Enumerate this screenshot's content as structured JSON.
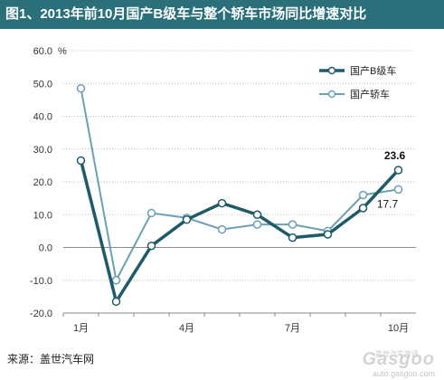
{
  "header": {
    "title": "图1、2013年前10月国产B级车与整个轿车市场同比增速对比"
  },
  "chart_data": {
    "type": "line",
    "title": "图1、2013年前10月国产B级车与整个轿车市场同比增速对比",
    "unit_label": "%",
    "x": [
      "1月",
      "2月",
      "3月",
      "4月",
      "5月",
      "6月",
      "7月",
      "8月",
      "9月",
      "10月"
    ],
    "x_tick_labels": [
      "1月",
      "",
      "",
      "4月",
      "",
      "",
      "7月",
      "",
      "",
      "10月"
    ],
    "y_ticks": [
      "-20.0",
      "-10.0",
      "0.0",
      "10.0",
      "20.0",
      "30.0",
      "40.0",
      "50.0",
      "60.0"
    ],
    "ylim": [
      -20,
      60
    ],
    "grid": "horizontal-dotted",
    "legend_position": "top-right",
    "series": [
      {
        "name": "国产B级车",
        "color": "#1f5a69",
        "values": [
          26.5,
          -16.5,
          0.5,
          8.5,
          13.5,
          10.0,
          3.0,
          4.0,
          12.0,
          23.6
        ]
      },
      {
        "name": "国产轿车",
        "color": "#6d9fb5",
        "values": [
          48.5,
          -10.0,
          10.5,
          9.0,
          5.5,
          7.0,
          7.0,
          5.0,
          16.0,
          17.7
        ]
      }
    ],
    "annotations": [
      {
        "text": "23.6",
        "series": 0,
        "index": 9,
        "bold": true
      },
      {
        "text": "17.7",
        "series": 1,
        "index": 9,
        "bold": false
      }
    ]
  },
  "footer": {
    "source": "来源：盖世汽车网"
  },
  "watermark": {
    "logo": "Gasgoo",
    "subtitle": "盖世汽车资讯",
    "url": "auto.gasgoo.com"
  },
  "colors": {
    "title_bar": "#2a6f7a",
    "grid": "#bdbdbd",
    "axis": "#8a8a8a"
  }
}
